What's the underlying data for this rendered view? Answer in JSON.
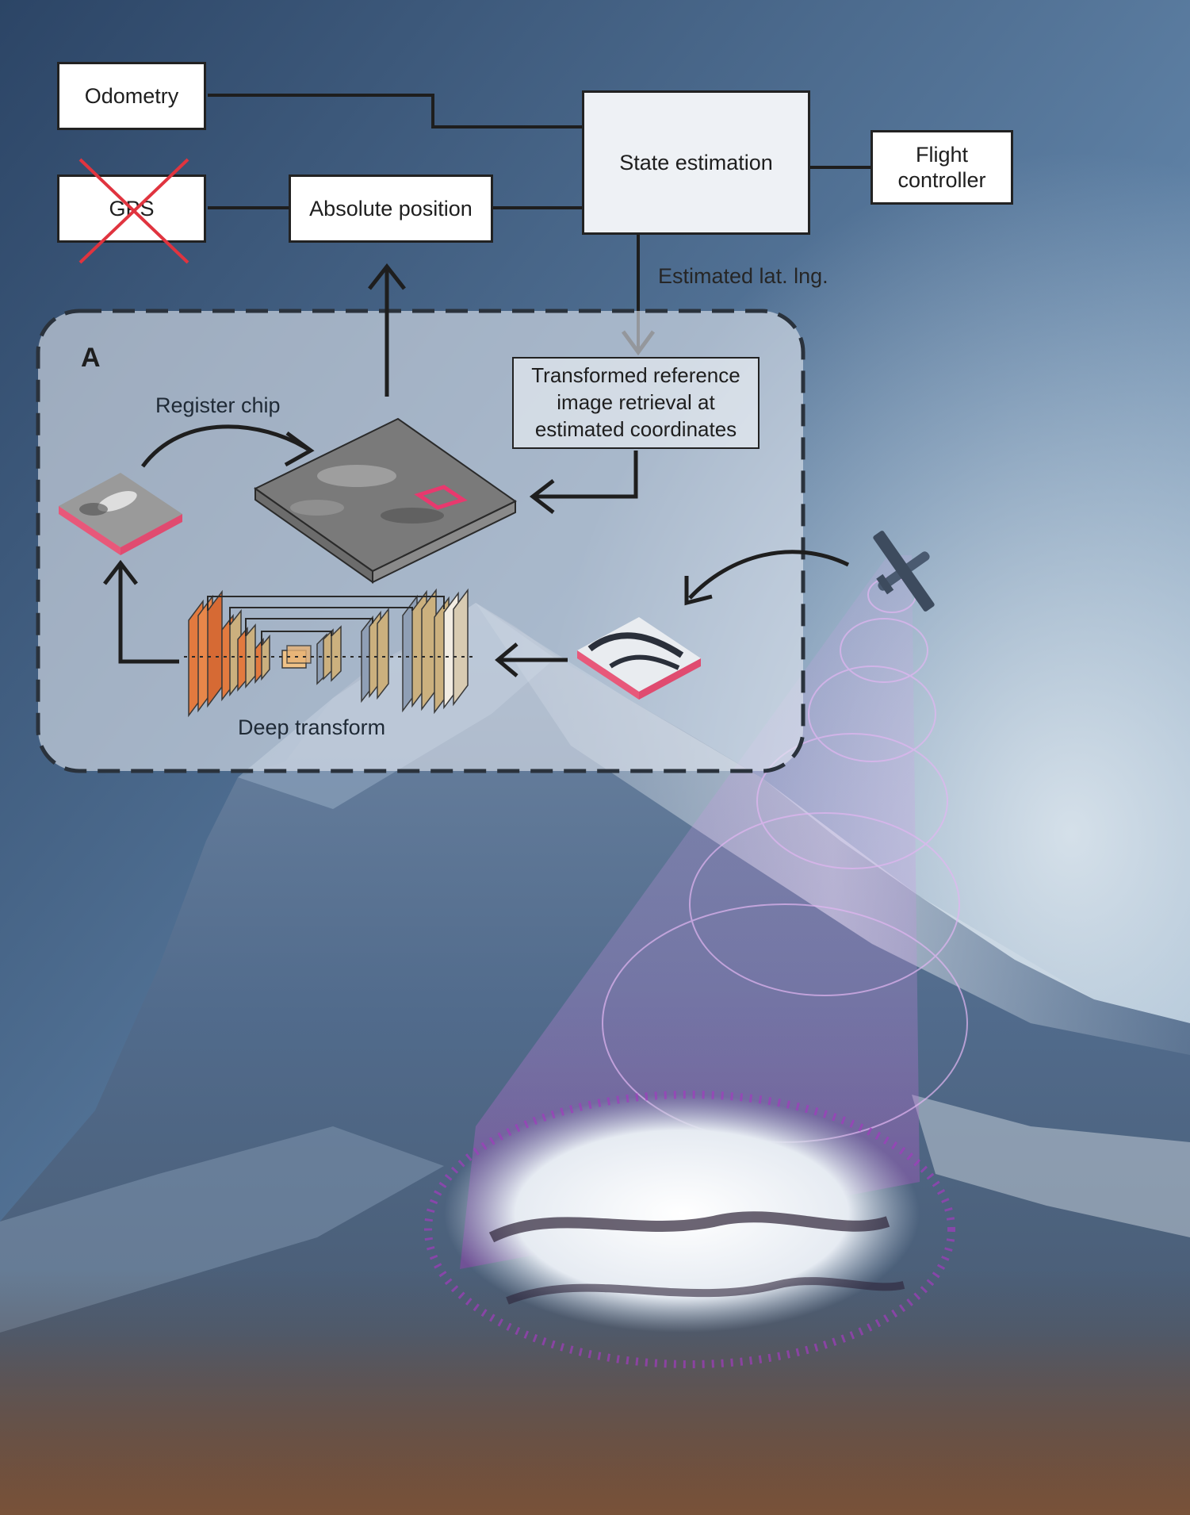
{
  "nodes": {
    "odometry": "Odometry",
    "gps": "GPS",
    "absolute_position": "Absolute position",
    "state_estimation": "State estimation",
    "flight_controller_line1": "Flight",
    "flight_controller_line2": "controller",
    "reference_line1": "Transformed reference",
    "reference_line2": "image retrieval at",
    "reference_line3": "estimated coordinates"
  },
  "labels": {
    "estimated_lat_lng": "Estimated lat. lng.",
    "register_chip": "Register chip",
    "deep_transform": "Deep transform",
    "panel_letter": "A"
  },
  "colors": {
    "gps_cross": "#e0343f",
    "chip_highlight": "#e8396e",
    "chip_base": "#e8587a",
    "beam": "#c98ee0",
    "unet_orange": "#e27a3f",
    "unet_tan": "#cbb07e",
    "unet_blue": "#8f9fb5"
  },
  "icons": {
    "aircraft": "fixed-wing-drone-icon",
    "gps_failed": "red-x-cross-icon"
  }
}
